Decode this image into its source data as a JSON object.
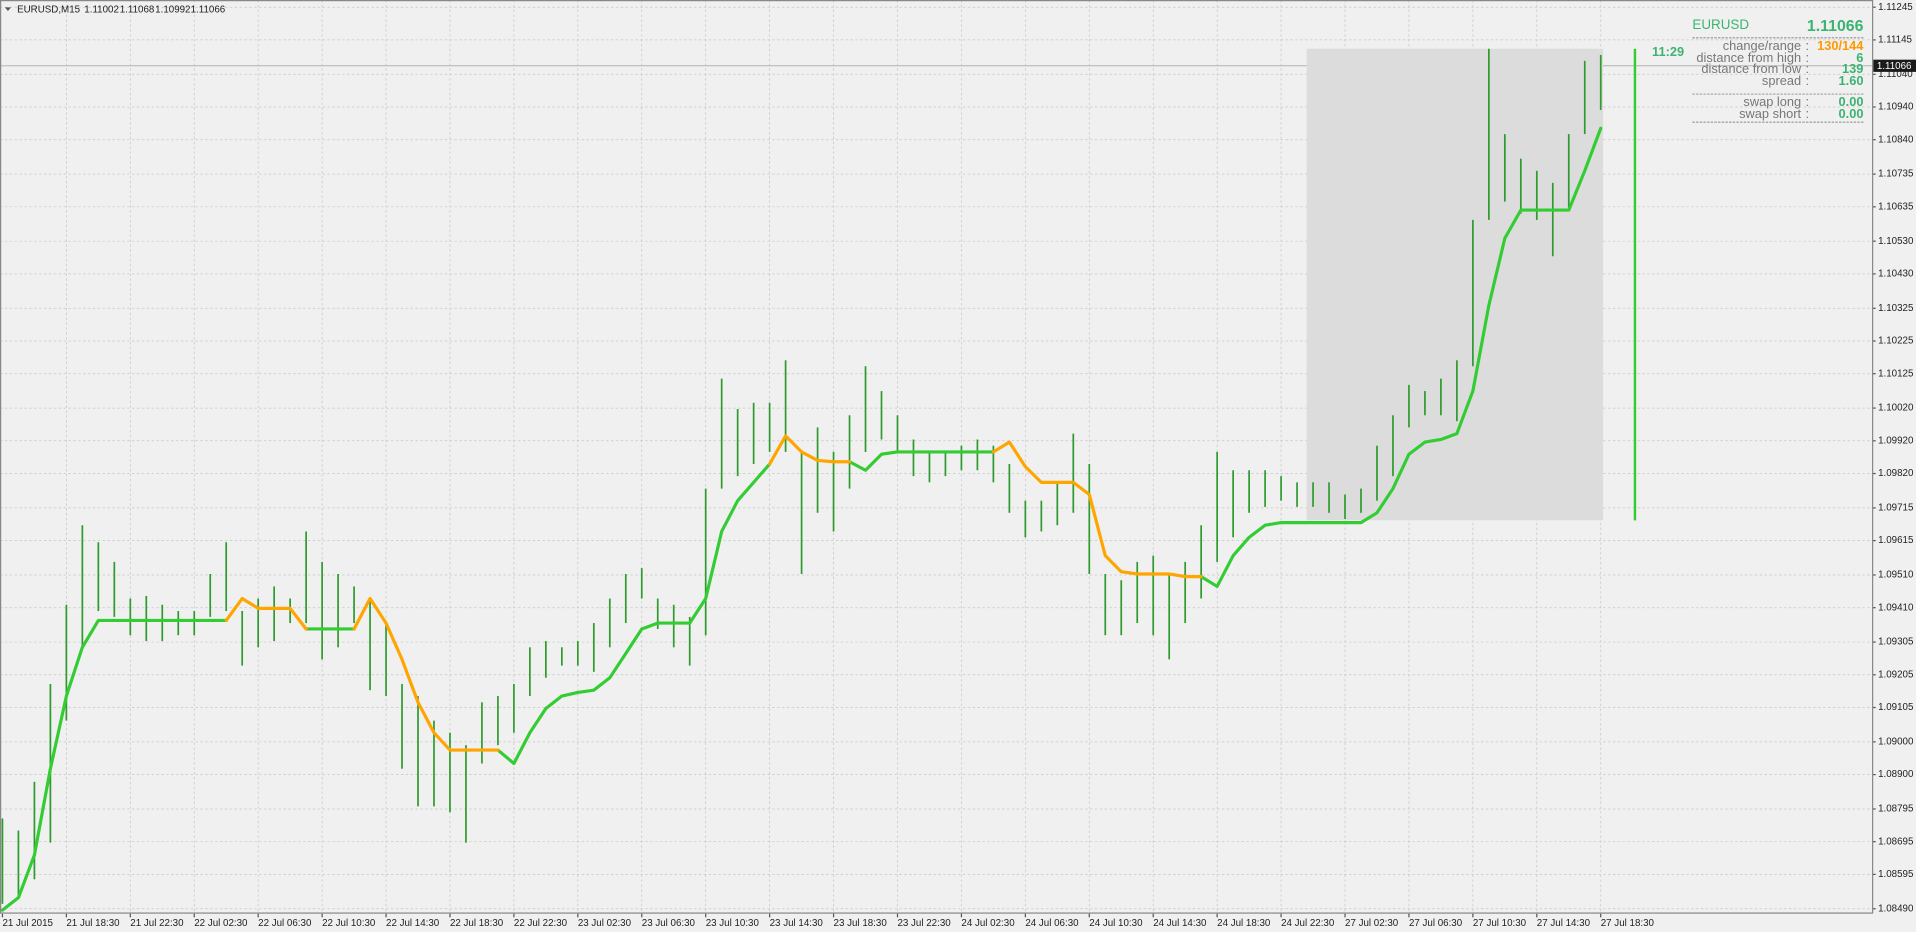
{
  "chart_data": {
    "type": "ohlc",
    "title": "EURUSD,M15",
    "header_values": [
      1.11002,
      1.11068,
      1.10992,
      1.11066
    ],
    "categories": [
      "21 Jul 2015",
      null,
      null,
      null,
      "21 Jul 18:30",
      null,
      null,
      null,
      "21 Jul 22:30",
      null,
      null,
      null,
      "22 Jul 02:30",
      null,
      null,
      null,
      "22 Jul 06:30",
      null,
      null,
      null,
      "22 Jul 10:30",
      null,
      null,
      null,
      "22 Jul 14:30",
      null,
      null,
      null,
      "22 Jul 18:30",
      null,
      null,
      null,
      "22 Jul 22:30",
      null,
      null,
      null,
      "23 Jul 02:30",
      null,
      null,
      null,
      "23 Jul 06:30",
      null,
      null,
      null,
      "23 Jul 10:30",
      null,
      null,
      null,
      "23 Jul 14:30",
      null,
      null,
      null,
      "23 Jul 18:30",
      null,
      null,
      null,
      "23 Jul 22:30",
      null,
      null,
      null,
      "24 Jul 02:30",
      null,
      null,
      null,
      "24 Jul 06:30",
      null,
      null,
      null,
      "24 Jul 10:30",
      null,
      null,
      null,
      "24 Jul 14:30",
      null,
      null,
      null,
      "24 Jul 18:30",
      null,
      null,
      null,
      "24 Jul 22:30",
      null,
      null,
      null,
      "27 Jul 02:30",
      null,
      null,
      null,
      "27 Jul 06:30",
      null,
      null,
      null,
      "27 Jul 10:30",
      null,
      null,
      null,
      "27 Jul 14:30",
      null,
      null,
      null,
      "27 Jul 18:30"
    ],
    "high": [
      1.08766,
      1.08729,
      1.08878,
      1.09177,
      1.09419,
      1.09662,
      1.0961,
      1.0955,
      1.09438,
      1.09446,
      1.09419,
      1.094,
      1.094,
      1.09513,
      1.0961,
      1.094,
      1.09438,
      1.09475,
      1.09438,
      1.09643,
      1.0955,
      1.09513,
      1.09475,
      1.09438,
      1.09363,
      1.09177,
      1.0914,
      1.09065,
      1.09028,
      1.0899,
      1.09121,
      1.0914,
      1.09177,
      1.09289,
      1.09308,
      1.09289,
      1.09308,
      1.09363,
      1.09438,
      1.09513,
      1.09531,
      1.09438,
      1.09419,
      1.09382,
      1.09774,
      1.1011,
      1.10017,
      1.10036,
      1.10036,
      1.10166,
      1.09886,
      1.09961,
      1.09886,
      1.09998,
      1.10148,
      1.10072,
      1.09998,
      1.09924,
      1.09886,
      1.09886,
      1.09905,
      1.09924,
      1.09905,
      1.09849,
      1.09737,
      1.09737,
      1.09793,
      1.09942,
      1.09849,
      1.09513,
      1.09494,
      1.0955,
      1.09569,
      1.09513,
      1.0955,
      1.09662,
      1.09886,
      1.0983,
      1.0983,
      1.0983,
      1.09812,
      1.09793,
      1.09793,
      1.09793,
      1.09756,
      1.09774,
      1.09905,
      1.09998,
      1.10091,
      1.10072,
      1.1011,
      1.10166,
      1.10595,
      1.11118,
      1.10857,
      1.10782,
      1.10745,
      1.10708,
      1.10857,
      1.11081,
      1.11099
    ],
    "low": [
      1.08505,
      1.08524,
      1.0858,
      1.08692,
      1.09065,
      1.09289,
      1.094,
      1.09382,
      1.09326,
      1.09308,
      1.09308,
      1.09326,
      1.09326,
      1.09382,
      1.094,
      1.09233,
      1.09289,
      1.09308,
      1.09363,
      1.09363,
      1.09252,
      1.09289,
      1.09363,
      1.09158,
      1.0914,
      1.08918,
      1.08803,
      1.08803,
      1.08785,
      1.08692,
      1.08934,
      1.0899,
      1.09028,
      1.0914,
      1.09196,
      1.09233,
      1.09233,
      1.09214,
      1.09289,
      1.09363,
      1.09438,
      1.09345,
      1.09289,
      1.09233,
      1.09326,
      1.09774,
      1.09812,
      1.09849,
      1.09886,
      1.09886,
      1.09513,
      1.097,
      1.09643,
      1.09774,
      1.09886,
      1.09924,
      1.09886,
      1.09812,
      1.09793,
      1.09812,
      1.0983,
      1.0983,
      1.09793,
      1.097,
      1.09625,
      1.09643,
      1.09662,
      1.097,
      1.09513,
      1.09326,
      1.09326,
      1.09363,
      1.09326,
      1.09252,
      1.09363,
      1.09438,
      1.0955,
      1.09625,
      1.097,
      1.09718,
      1.09737,
      1.09718,
      1.09718,
      1.097,
      1.09681,
      1.097,
      1.09737,
      1.09812,
      1.09961,
      1.09998,
      1.09998,
      1.0998,
      1.10148,
      1.10595,
      1.10651,
      1.10614,
      1.10595,
      1.10484,
      1.10633,
      1.10857,
      1.10931
    ],
    "bar_color": "#2f9a2f",
    "lines": [
      {
        "color": "#33cc33",
        "values": [
          1.08486,
          1.08524,
          1.08654,
          1.08918,
          1.0914,
          1.09289,
          1.09371,
          1.09371,
          1.09371,
          1.09371,
          1.09371,
          1.09371,
          1.09371,
          1.09371,
          1.09371,
          null,
          null,
          null,
          null,
          1.09345,
          1.09345,
          1.09345,
          1.09345,
          null,
          null,
          null,
          null,
          null,
          null,
          null,
          null,
          1.08975,
          1.08934,
          1.09028,
          1.09102,
          1.0914,
          1.09151,
          1.09158,
          1.09196,
          1.0927,
          1.09345,
          1.09363,
          1.09363,
          1.09363,
          1.09438,
          1.09643,
          1.09737,
          1.09793,
          1.09849,
          null,
          null,
          null,
          null,
          1.09856,
          1.0983,
          1.09879,
          1.09886,
          1.09886,
          1.09886,
          1.09886,
          1.09886,
          1.09886,
          1.09886,
          null,
          null,
          null,
          null,
          null,
          null,
          null,
          null,
          null,
          null,
          null,
          null,
          1.09505,
          1.09475,
          1.09569,
          1.09625,
          1.09662,
          1.0967,
          1.0967,
          1.0967,
          1.0967,
          1.0967,
          1.0967,
          1.097,
          1.09774,
          1.09879,
          1.09916,
          1.09924,
          1.09942,
          1.10072,
          1.10334,
          1.10539,
          1.10625,
          1.10625,
          1.10625,
          1.10625,
          1.10745,
          1.10875
        ]
      },
      {
        "color": "#ffa500",
        "values": [
          null,
          null,
          null,
          null,
          null,
          null,
          null,
          null,
          null,
          null,
          null,
          null,
          null,
          null,
          1.09371,
          1.09438,
          1.09408,
          1.09408,
          1.09408,
          1.09345,
          null,
          null,
          1.09345,
          1.09438,
          1.09363,
          1.09252,
          1.09121,
          1.09028,
          1.08975,
          1.08975,
          1.08975,
          1.08975,
          null,
          null,
          null,
          null,
          null,
          null,
          null,
          null,
          null,
          null,
          null,
          null,
          null,
          null,
          null,
          null,
          1.09849,
          1.09935,
          1.09886,
          1.0986,
          1.09856,
          1.09856,
          null,
          null,
          null,
          null,
          null,
          null,
          null,
          null,
          1.09886,
          1.09916,
          1.09841,
          1.09793,
          1.09793,
          1.09793,
          1.09756,
          1.09569,
          1.0952,
          1.09513,
          1.09513,
          1.09513,
          1.09505,
          1.09505,
          null,
          null,
          null,
          null,
          null,
          null,
          null,
          null,
          null,
          null,
          null,
          null,
          null,
          null,
          null,
          null,
          null,
          null,
          null,
          null,
          null,
          null,
          null,
          null,
          null
        ]
      }
    ],
    "ylim": [
      1.08475,
      1.11267
    ],
    "yticks": [
      1.11245,
      1.11145,
      {
        "value": 1.1104,
        "label": "1.11040"
      },
      {
        "value": 1.1094,
        "label": "1.10940"
      },
      {
        "value": 1.1084,
        "label": "1.10840"
      },
      1.10735,
      1.10635,
      {
        "value": 1.1053,
        "label": "1.10530"
      },
      {
        "value": 1.1043,
        "label": "1.10430"
      },
      1.10325,
      1.10225,
      1.10125,
      {
        "value": 1.1002,
        "label": "1.10020"
      },
      {
        "value": 1.0992,
        "label": "1.09920"
      },
      {
        "value": 1.0982,
        "label": "1.09820"
      },
      1.09715,
      1.09615,
      {
        "value": 1.0951,
        "label": "1.09510"
      },
      {
        "value": 1.0941,
        "label": "1.09410"
      },
      1.09305,
      1.09205,
      1.09105,
      {
        "value": 1.09,
        "label": "1.09000"
      },
      {
        "value": 1.089,
        "label": "1.08900"
      },
      1.08795,
      1.08695,
      1.08595,
      {
        "value": 1.0849,
        "label": "1.08490"
      }
    ],
    "grid": true,
    "last_price": 1.11066,
    "range_box": {
      "high": 1.11118,
      "low": 1.09677,
      "color": "#dcdcdc"
    },
    "timer": "11:29"
  },
  "info_panel": {
    "symbol": "EURUSD",
    "separator": ":",
    "rows": [
      {
        "label": "change/range",
        "value": "130/144"
      },
      {
        "label": "distance from high",
        "value": "6"
      },
      {
        "label": "distance from low",
        "value": "139"
      },
      {
        "label": "spread",
        "value": "1.60"
      },
      {
        "label": "swap long",
        "value": "0.00"
      },
      {
        "label": "swap short",
        "value": "0.00"
      }
    ]
  }
}
